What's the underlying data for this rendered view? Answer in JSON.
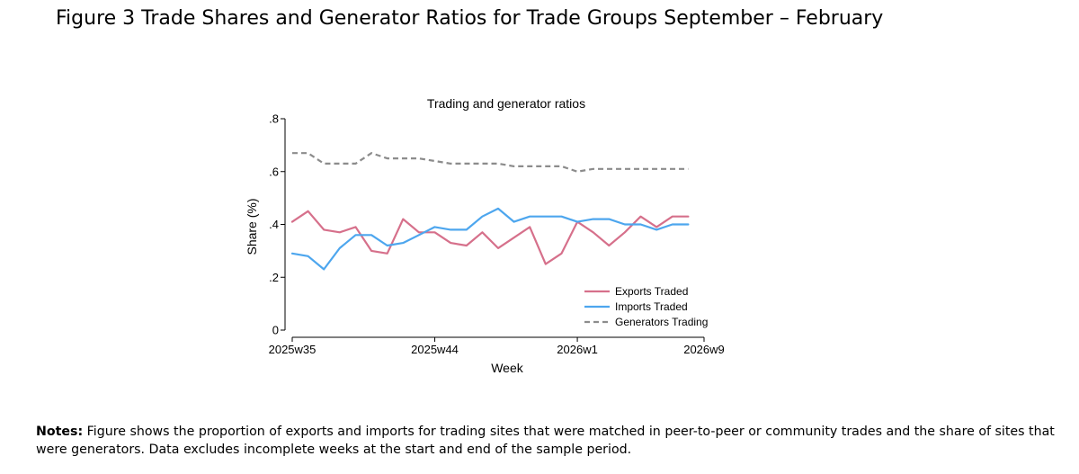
{
  "figure": {
    "title": "Figure 3 Trade Shares and Generator Ratios for Trade Groups September – February"
  },
  "notes": {
    "label": "Notes:",
    "text": " Figure shows the proportion of exports and imports for trading sites that were matched in peer-to-peer or community trades and the share of sites that were generators. Data excludes incomplete weeks at the start and end of the sample period."
  },
  "chart_data": {
    "type": "line",
    "title": "Trading and generator ratios",
    "xlabel": "Week",
    "ylabel": "Share (%)",
    "ylim": [
      0,
      0.8
    ],
    "yticks": [
      0,
      0.2,
      0.4,
      0.6,
      0.8
    ],
    "ytick_labels": [
      "0",
      ".2",
      ".4",
      ".6",
      ".8"
    ],
    "xticks": [
      {
        "index": 0,
        "label": "2025w35"
      },
      {
        "index": 9,
        "label": "2025w44"
      },
      {
        "index": 18,
        "label": "2026w1"
      },
      {
        "index": 26,
        "label": "2026w9"
      }
    ],
    "grid": false,
    "legend_position": "bottom-right",
    "x": [
      "2025w35",
      "2025w36",
      "2025w37",
      "2025w38",
      "2025w39",
      "2025w40",
      "2025w41",
      "2025w42",
      "2025w43",
      "2025w44",
      "2025w45",
      "2025w46",
      "2025w47",
      "2025w48",
      "2025w49",
      "2025w50",
      "2025w51",
      "2025w52",
      "2026w1",
      "2026w2",
      "2026w3",
      "2026w4",
      "2026w5",
      "2026w6",
      "2026w7",
      "2026w8"
    ],
    "series": [
      {
        "name": "Exports Traded",
        "color": "#d6708b",
        "dash": "solid",
        "values": [
          0.41,
          0.45,
          0.38,
          0.37,
          0.39,
          0.3,
          0.29,
          0.42,
          0.37,
          0.37,
          0.33,
          0.32,
          0.37,
          0.31,
          0.35,
          0.39,
          0.25,
          0.29,
          0.41,
          0.37,
          0.32,
          0.37,
          0.43,
          0.39,
          0.43,
          0.43
        ]
      },
      {
        "name": "Imports Traded",
        "color": "#4da6ee",
        "dash": "solid",
        "values": [
          0.29,
          0.28,
          0.23,
          0.31,
          0.36,
          0.36,
          0.32,
          0.33,
          0.36,
          0.39,
          0.38,
          0.38,
          0.43,
          0.46,
          0.41,
          0.43,
          0.43,
          0.43,
          0.41,
          0.42,
          0.42,
          0.4,
          0.4,
          0.38,
          0.4,
          0.4
        ]
      },
      {
        "name": "Generators Trading",
        "color": "#8c8c8c",
        "dash": "dashed",
        "values": [
          0.67,
          0.67,
          0.63,
          0.63,
          0.63,
          0.67,
          0.65,
          0.65,
          0.65,
          0.64,
          0.63,
          0.63,
          0.63,
          0.63,
          0.62,
          0.62,
          0.62,
          0.62,
          0.6,
          0.61,
          0.61,
          0.61,
          0.61,
          0.61,
          0.61,
          0.61
        ]
      }
    ]
  }
}
